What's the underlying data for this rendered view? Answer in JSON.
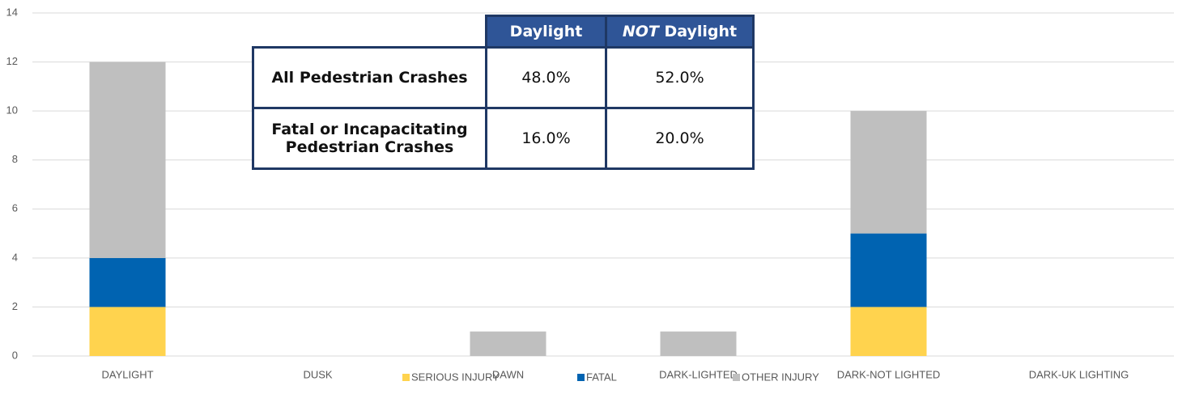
{
  "chart_data": {
    "type": "stacked_bar",
    "categories": [
      "DAYLIGHT",
      "DUSK",
      "DAWN",
      "DARK-LIGHTED",
      "DARK-NOT LIGHTED",
      "DARK-UK LIGHTING"
    ],
    "series": [
      {
        "name": "SERIOUS INJURY",
        "color": "#ffd34e",
        "values": [
          2,
          0,
          0,
          0,
          2,
          0
        ]
      },
      {
        "name": "FATAL",
        "color": "#0063b1",
        "values": [
          2,
          0,
          0,
          0,
          3,
          0
        ]
      },
      {
        "name": "OTHER INJURY",
        "color": "#bfbfbf",
        "values": [
          8,
          0,
          1,
          1,
          5,
          0
        ]
      }
    ],
    "ylim": [
      0,
      14
    ],
    "yticks": [
      0,
      2,
      4,
      6,
      8,
      10,
      12,
      14
    ],
    "grid": true,
    "legend": "bottom"
  },
  "table": {
    "columns": [
      [
        "Daylight"
      ],
      [
        "NOT",
        "Daylight"
      ]
    ],
    "rows": [
      [
        "All Pedestrian Crashes",
        "48.0%",
        "52.0%"
      ],
      [
        "Fatal or Incapacitating Pedestrian Crashes",
        "16.0%",
        "20.0%"
      ]
    ]
  }
}
